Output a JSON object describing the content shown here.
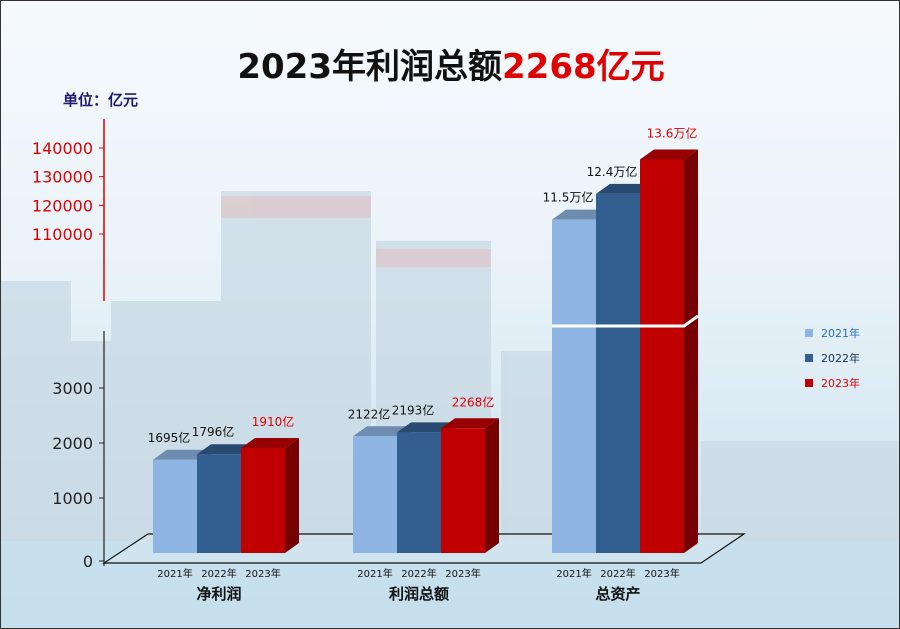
{
  "title": {
    "main": "2023年利润总额",
    "highlight": "2268亿元"
  },
  "unit_label": "单位：亿元",
  "colors": {
    "y2021": "#8db4e2",
    "y2022": "#335f90",
    "y2023": "#c00000",
    "accent": "#e00000"
  },
  "chart_data": {
    "type": "bar",
    "title": "2023年利润总额2268亿元",
    "categories": [
      "净利润",
      "利润总额",
      "总资产"
    ],
    "series": [
      {
        "name": "2021年",
        "values": [
          1695,
          2122,
          115000
        ],
        "labels": [
          "1695亿",
          "2122亿",
          "11.5万亿"
        ]
      },
      {
        "name": "2022年",
        "values": [
          1796,
          2193,
          124000
        ],
        "labels": [
          "1796亿",
          "2193亿",
          "12.4万亿"
        ]
      },
      {
        "name": "2023年",
        "values": [
          1910,
          2268,
          136000
        ],
        "labels": [
          "1910亿",
          "2268亿",
          "13.6万亿"
        ]
      }
    ],
    "bar_year_labels": [
      "2021年",
      "2022年",
      "2023年"
    ],
    "ylim_lower": [
      0,
      4000
    ],
    "ylim_upper": [
      100000,
      140000
    ],
    "yticks_lower": [
      0,
      1000,
      2000,
      3000
    ],
    "yticks_upper": [
      110000,
      120000,
      130000,
      140000
    ],
    "axis_break": true,
    "legend_position": "right"
  }
}
